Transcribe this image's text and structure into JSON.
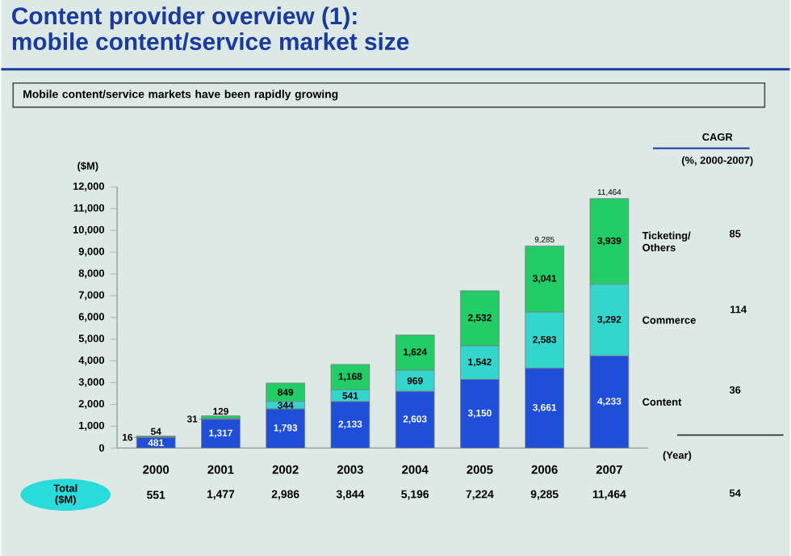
{
  "chart_data": {
    "type": "bar",
    "stacked": true,
    "title": "Content provider overview (1):\nmobile content/service market size",
    "subtitle": "Mobile content/service markets have been rapidly growing",
    "ylabel": "($M)",
    "categories": [
      "2000",
      "2001",
      "2002",
      "2003",
      "2004",
      "2005",
      "2006",
      "2007"
    ],
    "series": [
      {
        "name": "Content",
        "color": "#1f4fd8",
        "values": [
          481,
          1317,
          1793,
          2133,
          2603,
          3150,
          3661,
          4233
        ],
        "value_labels": [
          "481",
          "1,317",
          "1,793",
          "2,133",
          "2,603",
          "3,150",
          "3,661",
          "4,233"
        ]
      },
      {
        "name": "Commerce",
        "color": "#33d6cc",
        "values": [
          16,
          31,
          344,
          541,
          969,
          1542,
          2583,
          3292
        ],
        "value_labels": [
          "16",
          "31",
          "344",
          "541",
          "969",
          "1,542",
          "2,583",
          "3,292"
        ]
      },
      {
        "name": "Ticketing/ Others",
        "color": "#22cc66",
        "values": [
          54,
          129,
          849,
          1168,
          1624,
          2532,
          3041,
          3939
        ],
        "value_labels": [
          "54",
          "129",
          "849",
          "1,168",
          "1,624",
          "2,532",
          "3,041",
          "3,939"
        ]
      }
    ],
    "totals": [
      null,
      null,
      null,
      null,
      null,
      null,
      "9,285",
      "11,464"
    ],
    "ylim": [
      0,
      12000
    ],
    "yticks": [
      0,
      {
        "value": 1000,
        "label": "1,000"
      },
      {
        "value": 2000,
        "label": "2,000"
      },
      {
        "value": 3000,
        "label": "3,000"
      },
      {
        "value": 4000,
        "label": "4,000"
      },
      {
        "value": 5000,
        "label": "5,000"
      },
      {
        "value": 6000,
        "label": "6,000"
      },
      {
        "value": 7000,
        "label": "7,000"
      },
      {
        "value": 8000,
        "label": "8,000"
      },
      {
        "value": 9000,
        "label": "9,000"
      },
      {
        "value": 10000,
        "label": "10,000"
      },
      {
        "value": 11000,
        "label": "11,000"
      },
      {
        "value": 12000,
        "label": "12,000"
      }
    ],
    "grid": false,
    "annotations": [
      "CAGR",
      "(%, 2000-2007)",
      "85",
      "114",
      "36",
      "54",
      "Total ($M)",
      "(Year)",
      "551",
      "1,477",
      "2,986",
      "3,844",
      "5,196",
      "7,224",
      "9,285",
      "11,464"
    ]
  }
}
